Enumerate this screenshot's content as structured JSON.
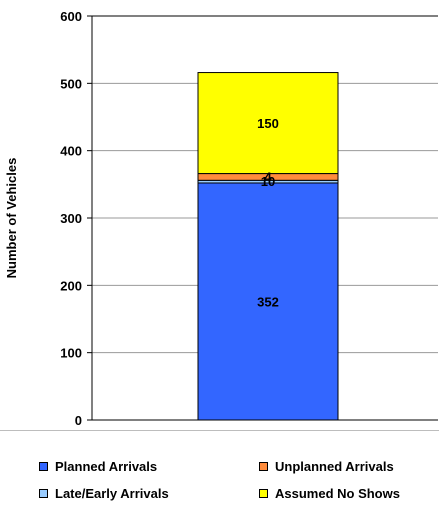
{
  "chart_data": {
    "type": "bar",
    "stacked": true,
    "categories": [
      ""
    ],
    "ylabel": "Number of Vehicles",
    "ylim": [
      0,
      600
    ],
    "yticks": [
      0,
      100,
      200,
      300,
      400,
      500,
      600
    ],
    "grid": true,
    "legend_position": "bottom",
    "series": [
      {
        "name": "Planned Arrivals",
        "values": [
          352
        ],
        "color": "#3366ff",
        "label": "352"
      },
      {
        "name": "Late/Early Arrivals",
        "values": [
          4
        ],
        "color": "#99ccff",
        "label": "4"
      },
      {
        "name": "Unplanned Arrivals",
        "values": [
          10
        ],
        "color": "#ff8c3c",
        "label": "10"
      },
      {
        "name": "Assumed No Shows",
        "values": [
          150
        ],
        "color": "#ffff00",
        "label": "150"
      }
    ]
  },
  "legend": {
    "items": [
      {
        "label": "Planned Arrivals",
        "color": "#3366ff"
      },
      {
        "label": "Unplanned Arrivals",
        "color": "#ff8c3c"
      },
      {
        "label": "Late/Early Arrivals",
        "color": "#99ccff"
      },
      {
        "label": "Assumed No Shows",
        "color": "#ffff00"
      }
    ]
  }
}
